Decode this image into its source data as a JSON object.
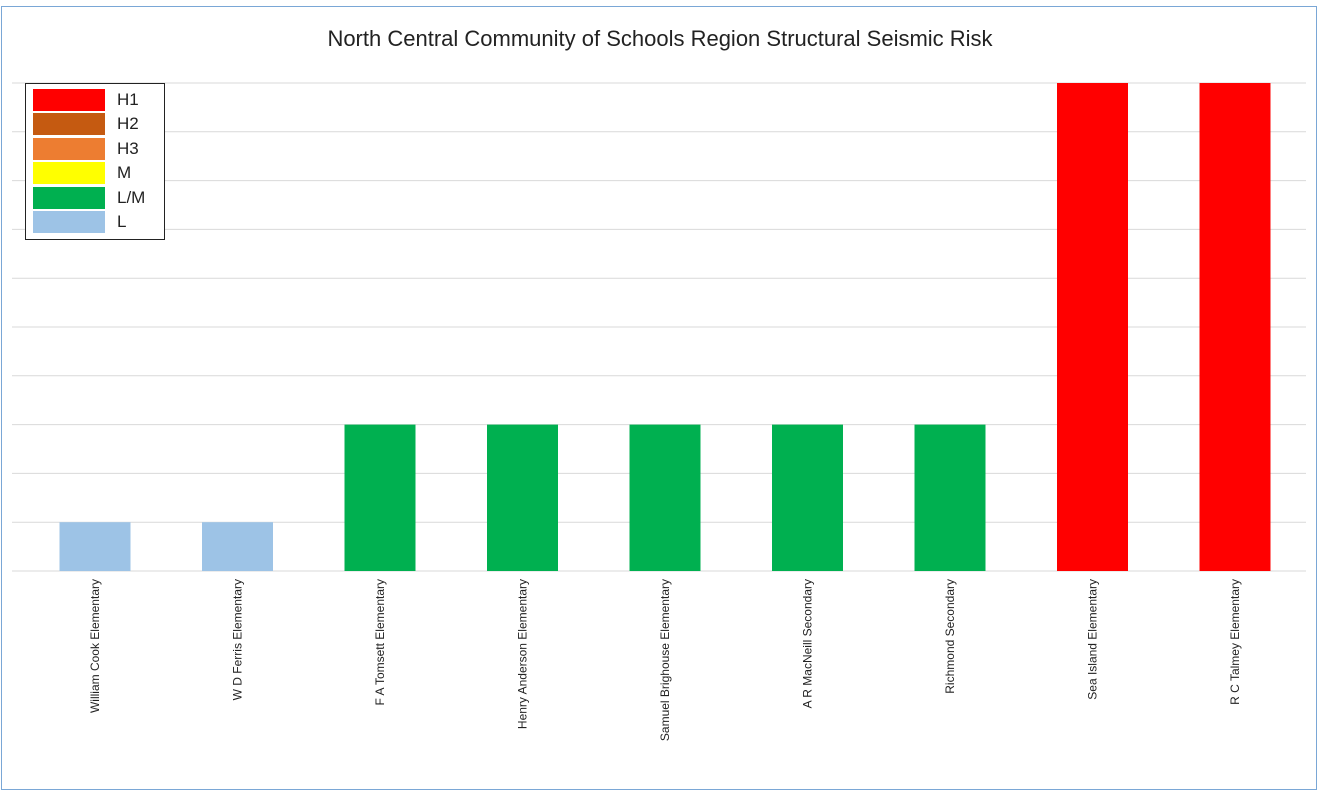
{
  "chart_data": {
    "type": "bar",
    "title": "North Central Community of Schools Region Structural Seismic Risk",
    "xlabel": "",
    "ylabel": "",
    "ylim": [
      0,
      10
    ],
    "grid": true,
    "legend_position": "top-left",
    "legend": [
      {
        "label": "H1",
        "color": "#ff0000"
      },
      {
        "label": "H2",
        "color": "#c55a11"
      },
      {
        "label": "H3",
        "color": "#ed7d31"
      },
      {
        "label": "M",
        "color": "#ffff00"
      },
      {
        "label": "L/M",
        "color": "#00b050"
      },
      {
        "label": "L",
        "color": "#9dc3e6"
      }
    ],
    "categories": [
      "William Cook Elementary",
      "W D Ferris Elementary",
      "F A Tomsett Elementary",
      "Henry Anderson Elementary",
      "Samuel Brighouse Elementary",
      "A R MacNeill Secondary",
      "Richmond Secondary",
      "Sea Island Elementary",
      "R C Talmey Elementary"
    ],
    "values": [
      1,
      1,
      3,
      3,
      3,
      3,
      3,
      10,
      10
    ],
    "risk": [
      "L",
      "L",
      "L/M",
      "L/M",
      "L/M",
      "L/M",
      "L/M",
      "H1",
      "H1"
    ]
  }
}
